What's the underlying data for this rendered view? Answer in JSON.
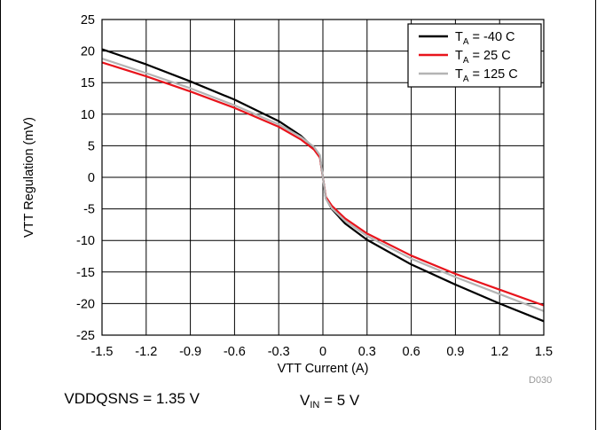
{
  "chart_data": {
    "type": "line",
    "xlabel": "VTT Current (A)",
    "ylabel": "VTT Regulation (mV)",
    "xlim": [
      -1.5,
      1.5
    ],
    "ylim": [
      -25,
      25
    ],
    "x_ticks": [
      "-1.5",
      "-1.2",
      "-0.9",
      "-0.6",
      "-0.3",
      "0",
      "0.3",
      "0.6",
      "0.9",
      "1.2",
      "1.5"
    ],
    "y_ticks": [
      "25",
      "20",
      "15",
      "10",
      "5",
      "0",
      "-5",
      "-10",
      "-15",
      "-20",
      "-25"
    ],
    "grid": true,
    "legend_position": "top-right",
    "series": [
      {
        "name_base": "T",
        "name_sub": "A",
        "name_rest": " = -40 C",
        "color": "#000000",
        "points": [
          [
            -1.5,
            20.3
          ],
          [
            -1.2,
            17.9
          ],
          [
            -0.9,
            15.2
          ],
          [
            -0.6,
            12.3
          ],
          [
            -0.3,
            8.9
          ],
          [
            -0.15,
            6.6
          ],
          [
            -0.06,
            4.6
          ],
          [
            -0.02,
            3.2
          ],
          [
            0,
            0
          ],
          [
            0.02,
            -3.3
          ],
          [
            0.06,
            -5.0
          ],
          [
            0.15,
            -7.3
          ],
          [
            0.3,
            -9.9
          ],
          [
            0.6,
            -13.8
          ],
          [
            0.9,
            -17.0
          ],
          [
            1.2,
            -20.0
          ],
          [
            1.5,
            -22.8
          ]
        ]
      },
      {
        "name_base": "T",
        "name_sub": "A",
        "name_rest": " = 25 C",
        "color": "#e8141c",
        "points": [
          [
            -1.5,
            18.2
          ],
          [
            -1.2,
            16.0
          ],
          [
            -0.9,
            13.6
          ],
          [
            -0.6,
            11.0
          ],
          [
            -0.3,
            8.0
          ],
          [
            -0.15,
            6.0
          ],
          [
            -0.06,
            4.4
          ],
          [
            -0.02,
            3.1
          ],
          [
            0,
            0
          ],
          [
            0.02,
            -3.1
          ],
          [
            0.06,
            -4.5
          ],
          [
            0.15,
            -6.5
          ],
          [
            0.3,
            -8.9
          ],
          [
            0.6,
            -12.4
          ],
          [
            0.9,
            -15.3
          ],
          [
            1.2,
            -17.8
          ],
          [
            1.5,
            -20.3
          ]
        ]
      },
      {
        "name_base": "T",
        "name_sub": "A",
        "name_rest": " = 125 C",
        "color": "#b4b4b4",
        "points": [
          [
            -1.5,
            18.8
          ],
          [
            -1.2,
            16.5
          ],
          [
            -0.9,
            14.1
          ],
          [
            -0.6,
            11.4
          ],
          [
            -0.3,
            8.4
          ],
          [
            -0.15,
            6.4
          ],
          [
            -0.06,
            4.8
          ],
          [
            -0.02,
            3.5
          ],
          [
            0,
            0
          ],
          [
            0.02,
            -3.4
          ],
          [
            0.06,
            -4.9
          ],
          [
            0.15,
            -6.9
          ],
          [
            0.3,
            -9.3
          ],
          [
            0.6,
            -12.9
          ],
          [
            0.9,
            -15.8
          ],
          [
            1.2,
            -18.5
          ],
          [
            1.5,
            -21.2
          ]
        ]
      }
    ]
  },
  "notes": {
    "vddqsns": "VDDQSNS = 1.35 V",
    "vin_base": "V",
    "vin_sub": "IN",
    "vin_rest": " = 5 V"
  },
  "figure_id": "D030"
}
